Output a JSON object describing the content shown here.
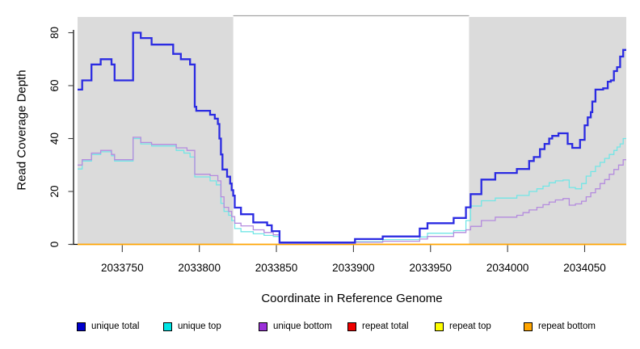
{
  "chart_data": {
    "type": "line",
    "step": true,
    "title": "",
    "xlabel": "Coordinate in Reference Genome",
    "ylabel": "Read Coverage Depth",
    "xlim": [
      2033721,
      2034077
    ],
    "ylim": [
      0,
      82
    ],
    "x_ticks": [
      2033750,
      2033800,
      2033850,
      2033900,
      2033950,
      2034000,
      2034050
    ],
    "y_ticks": [
      0,
      20,
      40,
      60,
      80
    ],
    "grid": false,
    "legend_position": "bottom",
    "background_color": "#FFFFFF",
    "shading_color": "#DBDBDB",
    "plot_region_shading": [
      {
        "label": "repeat-region-left",
        "from": 2033721,
        "to": 2033822
      },
      {
        "label": "repeat-region-right",
        "from": 2033975,
        "to": 2034077
      }
    ],
    "series": [
      {
        "name": "unique total",
        "swatch_color": "#0000CC",
        "line_color": "#2B2BE2",
        "line_width": 2.3,
        "values": [
          [
            2033721,
            58.5
          ],
          [
            2033724,
            62
          ],
          [
            2033730,
            68
          ],
          [
            2033736,
            70
          ],
          [
            2033743,
            68
          ],
          [
            2033745,
            62
          ],
          [
            2033757,
            80
          ],
          [
            2033762,
            78
          ],
          [
            2033769,
            75.5
          ],
          [
            2033783,
            72
          ],
          [
            2033788,
            70
          ],
          [
            2033794,
            68
          ],
          [
            2033797,
            52
          ],
          [
            2033798,
            50.5
          ],
          [
            2033807,
            49
          ],
          [
            2033810,
            47.5
          ],
          [
            2033812,
            45.5
          ],
          [
            2033813,
            40
          ],
          [
            2033814,
            34
          ],
          [
            2033815,
            28.3
          ],
          [
            2033818,
            25.6
          ],
          [
            2033820,
            23
          ],
          [
            2033821,
            20.5
          ],
          [
            2033822,
            18.4
          ],
          [
            2033823,
            13.9
          ],
          [
            2033827,
            11.4
          ],
          [
            2033835,
            8.3
          ],
          [
            2033844,
            7.2
          ],
          [
            2033847,
            5
          ],
          [
            2033852,
            0.7
          ],
          [
            2033901,
            2
          ],
          [
            2033919,
            3
          ],
          [
            2033943,
            6
          ],
          [
            2033948,
            8
          ],
          [
            2033965,
            10
          ],
          [
            2033973,
            14
          ],
          [
            2033976,
            19
          ],
          [
            2033983,
            24.5
          ],
          [
            2033992,
            27
          ],
          [
            2034006,
            28.5
          ],
          [
            2034014,
            31.5
          ],
          [
            2034017,
            33
          ],
          [
            2034021,
            36
          ],
          [
            2034024,
            38
          ],
          [
            2034027,
            40
          ],
          [
            2034029,
            41
          ],
          [
            2034033,
            42
          ],
          [
            2034039,
            38
          ],
          [
            2034042,
            36.5
          ],
          [
            2034047,
            39.5
          ],
          [
            2034050,
            45
          ],
          [
            2034052,
            48
          ],
          [
            2034054,
            50
          ],
          [
            2034055,
            54
          ],
          [
            2034057,
            58.5
          ],
          [
            2034062,
            59
          ],
          [
            2034065,
            61.5
          ],
          [
            2034067,
            62
          ],
          [
            2034069,
            65.5
          ],
          [
            2034071,
            67
          ],
          [
            2034073,
            71
          ],
          [
            2034075,
            73.5
          ]
        ]
      },
      {
        "name": "unique top",
        "swatch_color": "#00E5E5",
        "line_color": "#72E6E6",
        "line_width": 1.3,
        "values": [
          [
            2033721,
            28.5
          ],
          [
            2033724,
            31.5
          ],
          [
            2033730,
            34
          ],
          [
            2033736,
            35
          ],
          [
            2033743,
            33.5
          ],
          [
            2033745,
            31.5
          ],
          [
            2033757,
            40
          ],
          [
            2033762,
            38
          ],
          [
            2033769,
            37.2
          ],
          [
            2033785,
            35.5
          ],
          [
            2033790,
            34.5
          ],
          [
            2033794,
            33
          ],
          [
            2033797,
            25.5
          ],
          [
            2033807,
            24
          ],
          [
            2033811,
            22.5
          ],
          [
            2033814,
            15.5
          ],
          [
            2033816,
            12.5
          ],
          [
            2033819,
            11
          ],
          [
            2033821,
            9
          ],
          [
            2033823,
            6
          ],
          [
            2033827,
            4.8
          ],
          [
            2033835,
            4
          ],
          [
            2033842,
            3.4
          ],
          [
            2033848,
            3
          ],
          [
            2033852,
            0.4
          ],
          [
            2033901,
            1
          ],
          [
            2033919,
            1.8
          ],
          [
            2033943,
            2.8
          ],
          [
            2033948,
            4.2
          ],
          [
            2033965,
            5.2
          ],
          [
            2033973,
            9
          ],
          [
            2033976,
            14.5
          ],
          [
            2033983,
            16.5
          ],
          [
            2033992,
            17.5
          ],
          [
            2034006,
            18.5
          ],
          [
            2034014,
            20
          ],
          [
            2034019,
            21
          ],
          [
            2034023,
            22
          ],
          [
            2034027,
            23.3
          ],
          [
            2034031,
            24
          ],
          [
            2034036,
            24.3
          ],
          [
            2034040,
            21.5
          ],
          [
            2034044,
            21
          ],
          [
            2034048,
            23
          ],
          [
            2034051,
            25.8
          ],
          [
            2034054,
            27.5
          ],
          [
            2034057,
            29.5
          ],
          [
            2034060,
            31
          ],
          [
            2034063,
            32.5
          ],
          [
            2034066,
            34
          ],
          [
            2034069,
            35.5
          ],
          [
            2034071,
            36.8
          ],
          [
            2034073,
            38
          ],
          [
            2034075,
            40
          ]
        ]
      },
      {
        "name": "unique bottom",
        "swatch_color": "#9B30D9",
        "line_color": "#B48BDE",
        "line_width": 1.3,
        "values": [
          [
            2033721,
            30
          ],
          [
            2033724,
            32
          ],
          [
            2033730,
            34.5
          ],
          [
            2033736,
            35.5
          ],
          [
            2033743,
            34
          ],
          [
            2033745,
            32
          ],
          [
            2033757,
            40.5
          ],
          [
            2033762,
            38.5
          ],
          [
            2033769,
            37.8
          ],
          [
            2033785,
            36.5
          ],
          [
            2033792,
            35.5
          ],
          [
            2033797,
            26.5
          ],
          [
            2033807,
            26
          ],
          [
            2033812,
            24
          ],
          [
            2033814,
            18
          ],
          [
            2033816,
            14
          ],
          [
            2033819,
            12.5
          ],
          [
            2033821,
            10.5
          ],
          [
            2033823,
            8
          ],
          [
            2033827,
            7
          ],
          [
            2033835,
            5.5
          ],
          [
            2033842,
            4.5
          ],
          [
            2033848,
            3.6
          ],
          [
            2033852,
            0.4
          ],
          [
            2033901,
            0.8
          ],
          [
            2033919,
            1.2
          ],
          [
            2033943,
            2
          ],
          [
            2033948,
            3
          ],
          [
            2033965,
            4.5
          ],
          [
            2033973,
            5.5
          ],
          [
            2033976,
            6.8
          ],
          [
            2033983,
            9
          ],
          [
            2033992,
            10.3
          ],
          [
            2034006,
            11
          ],
          [
            2034010,
            12
          ],
          [
            2034014,
            13
          ],
          [
            2034019,
            14
          ],
          [
            2034023,
            15
          ],
          [
            2034027,
            16
          ],
          [
            2034031,
            16.8
          ],
          [
            2034036,
            17.3
          ],
          [
            2034040,
            14.8
          ],
          [
            2034044,
            15.3
          ],
          [
            2034048,
            16.3
          ],
          [
            2034051,
            18
          ],
          [
            2034054,
            19.5
          ],
          [
            2034057,
            21
          ],
          [
            2034060,
            23
          ],
          [
            2034063,
            24.5
          ],
          [
            2034066,
            26.5
          ],
          [
            2034069,
            28.3
          ],
          [
            2034072,
            30
          ],
          [
            2034075,
            32
          ]
        ]
      },
      {
        "name": "repeat total",
        "swatch_color": "#EE0000",
        "line_color": "#EE0000",
        "line_width": 1.3,
        "values": [
          [
            2033721,
            0
          ],
          [
            2034077,
            0
          ]
        ]
      },
      {
        "name": "repeat top",
        "swatch_color": "#FFFF00",
        "line_color": "#FFFF00",
        "line_width": 1.3,
        "values": [
          [
            2033721,
            0
          ],
          [
            2034077,
            0
          ]
        ]
      },
      {
        "name": "repeat bottom",
        "swatch_color": "#FFA500",
        "line_color": "#FFA500",
        "line_width": 1.6,
        "values": [
          [
            2033721,
            0
          ],
          [
            2034077,
            0
          ]
        ]
      }
    ]
  }
}
